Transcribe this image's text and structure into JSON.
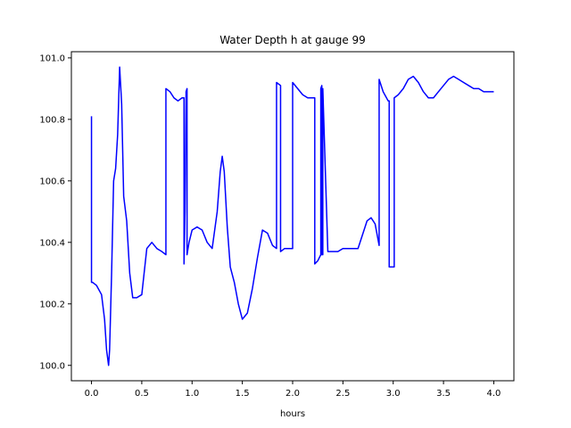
{
  "chart_data": {
    "type": "line",
    "title": "Water Depth h at gauge 99",
    "xlabel": "hours",
    "ylabel": "",
    "xlim": [
      -0.2,
      4.2
    ],
    "ylim": [
      99.95,
      101.02
    ],
    "x_ticks": [
      0.0,
      0.5,
      1.0,
      1.5,
      2.0,
      2.5,
      3.0,
      3.5,
      4.0
    ],
    "x_tick_labels": [
      "0.0",
      "0.5",
      "1.0",
      "1.5",
      "2.0",
      "2.5",
      "3.0",
      "3.5",
      "4.0"
    ],
    "y_ticks": [
      100.0,
      100.2,
      100.4,
      100.6,
      100.8,
      101.0
    ],
    "y_tick_labels": [
      "100.0",
      "100.2",
      "100.4",
      "100.6",
      "100.8",
      "101.0"
    ],
    "grid": false,
    "series": [
      {
        "color": "#0000ff",
        "x": [
          0.0,
          0.0,
          0.01,
          0.05,
          0.1,
          0.13,
          0.15,
          0.17,
          0.18,
          0.2,
          0.22,
          0.24,
          0.26,
          0.28,
          0.3,
          0.32,
          0.35,
          0.38,
          0.41,
          0.45,
          0.5,
          0.55,
          0.6,
          0.65,
          0.7,
          0.74,
          0.74,
          0.78,
          0.82,
          0.86,
          0.9,
          0.92,
          0.92,
          0.93,
          0.94,
          0.94,
          0.95,
          0.95,
          0.97,
          1.0,
          1.05,
          1.1,
          1.15,
          1.2,
          1.25,
          1.28,
          1.3,
          1.32,
          1.35,
          1.38,
          1.42,
          1.46,
          1.5,
          1.55,
          1.6,
          1.65,
          1.7,
          1.75,
          1.8,
          1.84,
          1.84,
          1.88,
          1.88,
          1.92,
          1.97,
          2.0,
          2.0,
          2.05,
          2.1,
          2.15,
          2.2,
          2.22,
          2.22,
          2.25,
          2.28,
          2.28,
          2.29,
          2.29,
          2.3,
          2.3,
          2.35,
          2.4,
          2.45,
          2.5,
          2.55,
          2.6,
          2.65,
          2.7,
          2.74,
          2.78,
          2.82,
          2.86,
          2.86,
          2.9,
          2.95,
          2.96,
          2.96,
          3.01,
          3.01,
          3.05,
          3.1,
          3.15,
          3.2,
          3.25,
          3.3,
          3.35,
          3.4,
          3.45,
          3.5,
          3.55,
          3.6,
          3.65,
          3.7,
          3.75,
          3.8,
          3.85,
          3.9,
          3.95,
          4.0
        ],
        "y": [
          100.81,
          100.27,
          100.27,
          100.26,
          100.23,
          100.15,
          100.05,
          100.0,
          100.05,
          100.3,
          100.6,
          100.64,
          100.75,
          100.97,
          100.85,
          100.55,
          100.47,
          100.3,
          100.22,
          100.22,
          100.23,
          100.38,
          100.4,
          100.38,
          100.37,
          100.36,
          100.9,
          100.89,
          100.87,
          100.86,
          100.87,
          100.87,
          100.33,
          100.5,
          100.88,
          100.89,
          100.9,
          100.36,
          100.4,
          100.44,
          100.45,
          100.44,
          100.4,
          100.38,
          100.5,
          100.63,
          100.68,
          100.63,
          100.45,
          100.32,
          100.27,
          100.2,
          100.15,
          100.17,
          100.25,
          100.35,
          100.44,
          100.43,
          100.39,
          100.38,
          100.92,
          100.91,
          100.37,
          100.38,
          100.38,
          100.38,
          100.92,
          100.9,
          100.88,
          100.87,
          100.87,
          100.87,
          100.33,
          100.34,
          100.36,
          100.9,
          100.91,
          100.36,
          100.36,
          100.9,
          100.37,
          100.37,
          100.37,
          100.38,
          100.38,
          100.38,
          100.38,
          100.43,
          100.47,
          100.48,
          100.46,
          100.39,
          100.93,
          100.89,
          100.86,
          100.86,
          100.32,
          100.32,
          100.87,
          100.88,
          100.9,
          100.93,
          100.94,
          100.92,
          100.89,
          100.87,
          100.87,
          100.89,
          100.91,
          100.93,
          100.94,
          100.93,
          100.92,
          100.91,
          100.9,
          100.9,
          100.89,
          100.89,
          100.89
        ]
      }
    ]
  }
}
